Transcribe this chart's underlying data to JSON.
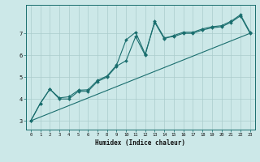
{
  "xlabel": "Humidex (Indice chaleur)",
  "bg_color": "#cce8e8",
  "grid_color": "#aacccc",
  "line_color": "#1a6e6e",
  "xlim": [
    -0.5,
    23.5
  ],
  "ylim": [
    2.6,
    8.3
  ],
  "xticks": [
    0,
    1,
    2,
    3,
    4,
    5,
    6,
    7,
    8,
    9,
    10,
    11,
    12,
    13,
    14,
    15,
    16,
    17,
    18,
    19,
    20,
    21,
    22,
    23
  ],
  "yticks": [
    3,
    4,
    5,
    6,
    7
  ],
  "line1_x": [
    0,
    1,
    2,
    3,
    4,
    5,
    6,
    7,
    8,
    9,
    10,
    11,
    12,
    13,
    14,
    15,
    16,
    17,
    18,
    19,
    20,
    21,
    22,
    23
  ],
  "line1_y": [
    3.0,
    3.8,
    4.45,
    4.0,
    4.0,
    4.35,
    4.35,
    4.8,
    5.0,
    5.5,
    5.75,
    6.85,
    6.0,
    7.55,
    6.8,
    6.85,
    7.0,
    7.0,
    7.15,
    7.25,
    7.3,
    7.5,
    7.8,
    7.0
  ],
  "line2_x": [
    0,
    1,
    2,
    3,
    4,
    5,
    6,
    7,
    8,
    9,
    10,
    11,
    12,
    13,
    14,
    15,
    16,
    17,
    18,
    19,
    20,
    21,
    22,
    23
  ],
  "line2_y": [
    3.0,
    3.8,
    4.45,
    4.05,
    4.1,
    4.4,
    4.42,
    4.85,
    5.05,
    5.55,
    6.7,
    7.05,
    6.05,
    7.5,
    6.75,
    6.9,
    7.05,
    7.05,
    7.2,
    7.3,
    7.35,
    7.55,
    7.85,
    7.05
  ],
  "line3_x": [
    0,
    23
  ],
  "line3_y": [
    3.0,
    7.0
  ]
}
